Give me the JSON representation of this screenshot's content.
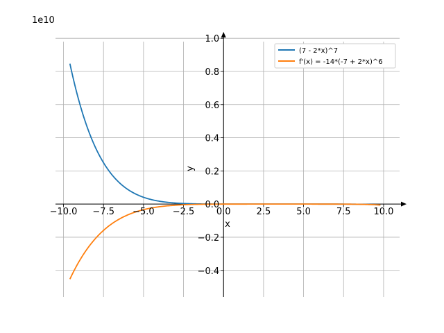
{
  "chart_data": {
    "type": "line",
    "title": "",
    "xlabel": "x",
    "ylabel": "y",
    "y_scale_text": "1e10",
    "xlim": [
      -10.5,
      11.0
    ],
    "ylim": [
      -0.56,
      1.03
    ],
    "x_ticks": [
      -10.0,
      -7.5,
      -5.0,
      -2.5,
      0.0,
      2.5,
      5.0,
      7.5,
      10.0
    ],
    "x_tick_labels": [
      "−10.0",
      "−7.5",
      "−5.0",
      "−2.5",
      "0.0",
      "2.5",
      "5.0",
      "7.5",
      "10.0"
    ],
    "y_ticks": [
      -0.4,
      -0.2,
      0.0,
      0.2,
      0.4,
      0.6,
      0.8,
      1.0
    ],
    "y_tick_labels": [
      "−0.4",
      "−0.2",
      "0.0",
      "0.2",
      "0.4",
      "0.6",
      "0.8",
      "1.0"
    ],
    "grid": true,
    "legend_position": "top-right",
    "x_range": [
      -9.6,
      9.8
    ],
    "series": [
      {
        "name": "(7 - 2*x)^7",
        "color": "#1f77b4",
        "function": "(7 - 2*x)^7",
        "scale": 10000000000.0
      },
      {
        "name": "f'(x) = -14*(-7 + 2*x)^6",
        "color": "#ff7f0e",
        "function": "-14*(-7 + 2*x)^6",
        "scale": 10000000000.0
      }
    ]
  }
}
